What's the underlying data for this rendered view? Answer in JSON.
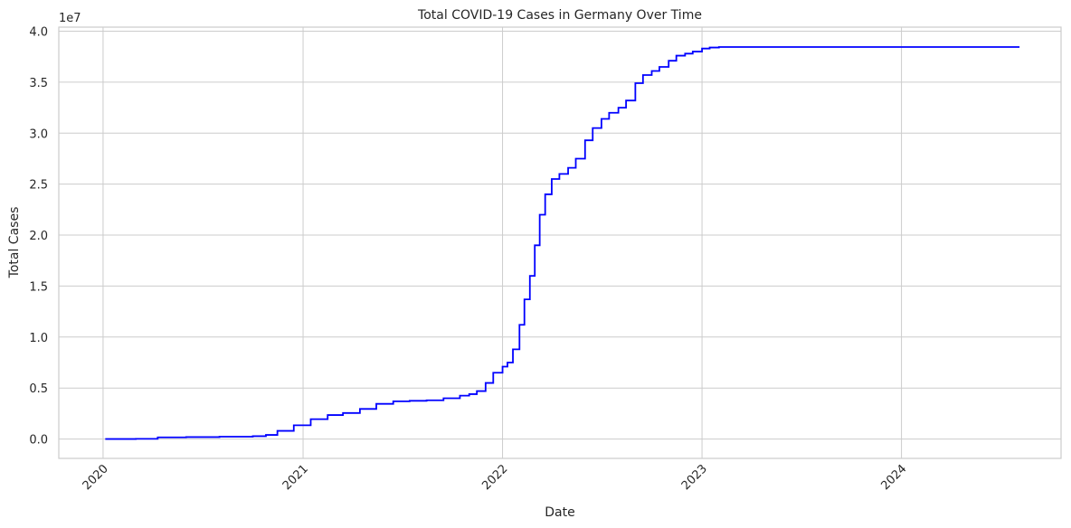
{
  "chart_data": {
    "type": "line",
    "title": "Total COVID-19 Cases in Germany Over Time",
    "xlabel": "Date",
    "ylabel": "Total Cases",
    "y_offset_label": "1e7",
    "y_scale_factor": 10000000,
    "xlim": [
      "2019-10-12",
      "2024-10-19"
    ],
    "ylim": [
      -1900000,
      40400000
    ],
    "x_tick_labels": [
      "2020",
      "2021",
      "2022",
      "2023",
      "2024"
    ],
    "x_tick_dates": [
      "2020-01-01",
      "2021-01-01",
      "2022-01-01",
      "2023-01-01",
      "2024-01-01"
    ],
    "y_tick_values": [
      0,
      5000000,
      10000000,
      15000000,
      20000000,
      25000000,
      30000000,
      35000000,
      40000000
    ],
    "y_tick_labels": [
      "0.0",
      "0.5",
      "1.0",
      "1.5",
      "2.0",
      "2.5",
      "3.0",
      "3.5",
      "4.0"
    ],
    "grid": true,
    "series": [
      {
        "color": "#0000ff",
        "x": [
          "2020-01-05",
          "2020-03-01",
          "2020-04-10",
          "2020-06-01",
          "2020-08-01",
          "2020-10-01",
          "2020-10-25",
          "2020-11-15",
          "2020-12-15",
          "2021-01-15",
          "2021-02-15",
          "2021-03-15",
          "2021-04-15",
          "2021-05-15",
          "2021-06-15",
          "2021-07-15",
          "2021-08-15",
          "2021-09-15",
          "2021-10-15",
          "2021-11-01",
          "2021-11-15",
          "2021-12-01",
          "2021-12-15",
          "2022-01-01",
          "2022-01-10",
          "2022-01-20",
          "2022-02-01",
          "2022-02-10",
          "2022-02-20",
          "2022-03-01",
          "2022-03-10",
          "2022-03-20",
          "2022-04-01",
          "2022-04-15",
          "2022-05-01",
          "2022-05-15",
          "2022-06-01",
          "2022-06-15",
          "2022-07-01",
          "2022-07-15",
          "2022-08-01",
          "2022-08-15",
          "2022-09-01",
          "2022-09-15",
          "2022-10-01",
          "2022-10-15",
          "2022-11-01",
          "2022-11-15",
          "2022-12-01",
          "2022-12-15",
          "2023-01-01",
          "2023-01-15",
          "2023-02-01",
          "2023-02-15",
          "2023-03-01",
          "2023-04-01",
          "2023-06-01",
          "2023-09-01",
          "2024-01-01",
          "2024-04-01",
          "2024-08-04"
        ],
        "y": [
          0,
          20000,
          160000,
          190000,
          230000,
          280000,
          400000,
          800000,
          1350000,
          1950000,
          2350000,
          2550000,
          2950000,
          3450000,
          3700000,
          3750000,
          3800000,
          4000000,
          4250000,
          4400000,
          4700000,
          5500000,
          6500000,
          7100000,
          7500000,
          8800000,
          11200000,
          13700000,
          16000000,
          19000000,
          22000000,
          24000000,
          25500000,
          26000000,
          26600000,
          27500000,
          29300000,
          30500000,
          31400000,
          32000000,
          32500000,
          33200000,
          34900000,
          35700000,
          36100000,
          36500000,
          37100000,
          37600000,
          37800000,
          38000000,
          38300000,
          38400000,
          38450000,
          38450000,
          38450000,
          38450000,
          38450000,
          38450000,
          38450000,
          38450000,
          38450000
        ]
      }
    ]
  }
}
